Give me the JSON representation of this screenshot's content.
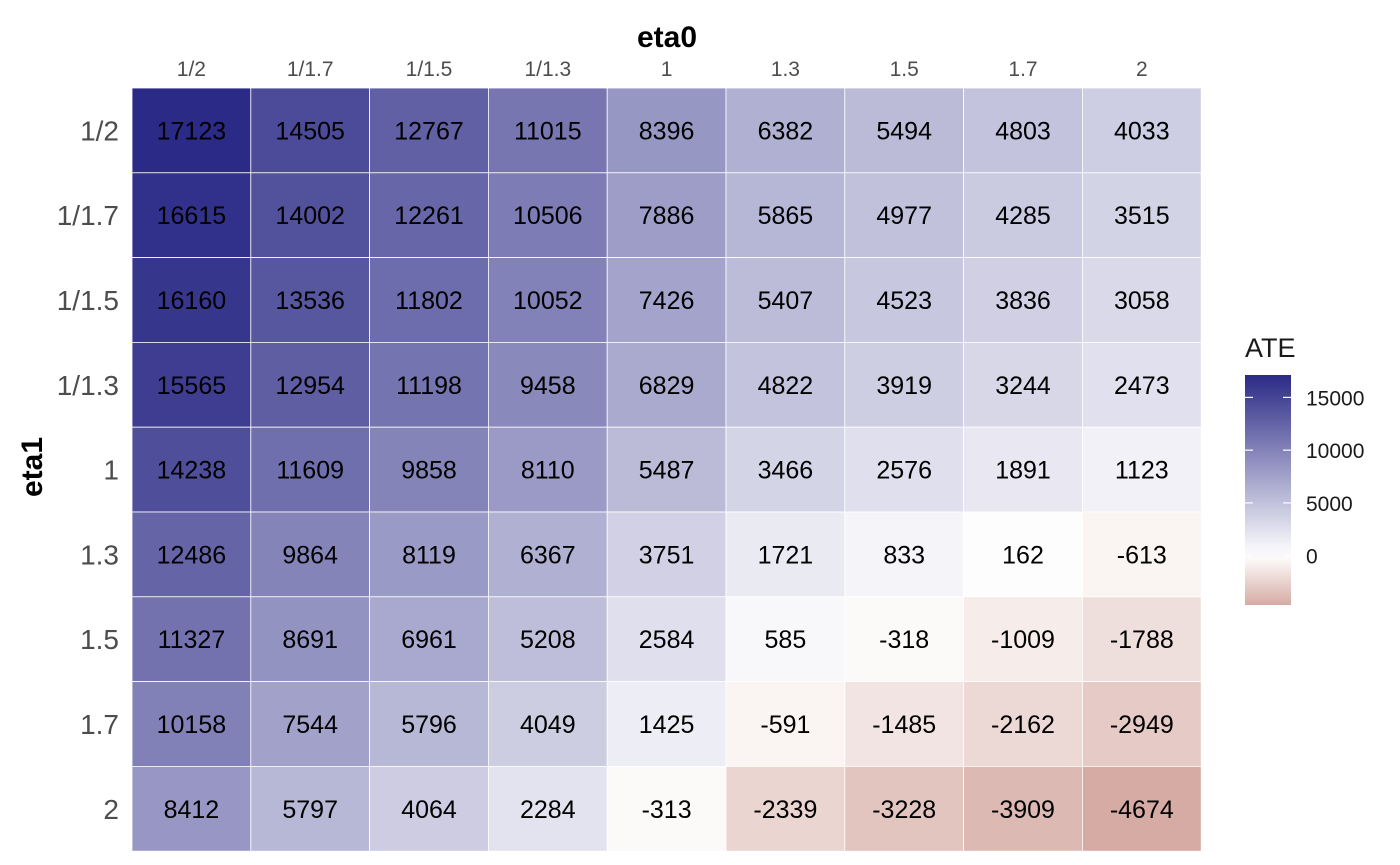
{
  "chart_data": {
    "type": "heatmap",
    "xlabel": "eta0",
    "ylabel": "eta1",
    "x_categories": [
      "1/2",
      "1/1.7",
      "1/1.5",
      "1/1.3",
      "1",
      "1.3",
      "1.5",
      "1.7",
      "2"
    ],
    "y_categories": [
      "1/2",
      "1/1.7",
      "1/1.5",
      "1/1.3",
      "1",
      "1.3",
      "1.5",
      "1.7",
      "2"
    ],
    "values": [
      [
        17123,
        14505,
        12767,
        11015,
        8396,
        6382,
        5494,
        4803,
        4033
      ],
      [
        16615,
        14002,
        12261,
        10506,
        7886,
        5865,
        4977,
        4285,
        3515
      ],
      [
        16160,
        13536,
        11802,
        10052,
        7426,
        5407,
        4523,
        3836,
        3058
      ],
      [
        15565,
        12954,
        11198,
        9458,
        6829,
        4822,
        3919,
        3244,
        2473
      ],
      [
        14238,
        11609,
        9858,
        8110,
        5487,
        3466,
        2576,
        1891,
        1123
      ],
      [
        12486,
        9864,
        8119,
        6367,
        3751,
        1721,
        833,
        162,
        -613
      ],
      [
        11327,
        8691,
        6961,
        5208,
        2584,
        585,
        -318,
        -1009,
        -1788
      ],
      [
        10158,
        7544,
        5796,
        4049,
        1425,
        -591,
        -1485,
        -2162,
        -2949
      ],
      [
        8412,
        5797,
        4064,
        2284,
        -313,
        -2339,
        -3228,
        -3909,
        -4674
      ]
    ],
    "legend": {
      "title": "ATE",
      "position": "right",
      "ticks": [
        15000,
        10000,
        5000,
        0
      ],
      "tick_labels": [
        "15000",
        "10000",
        "5000",
        "0"
      ],
      "range": [
        -4674,
        17123
      ]
    },
    "colors": {
      "high": "#2b2a86",
      "mid": "#ffffff",
      "low": "#d6aba4"
    },
    "cell_labels": true,
    "grid": false
  }
}
